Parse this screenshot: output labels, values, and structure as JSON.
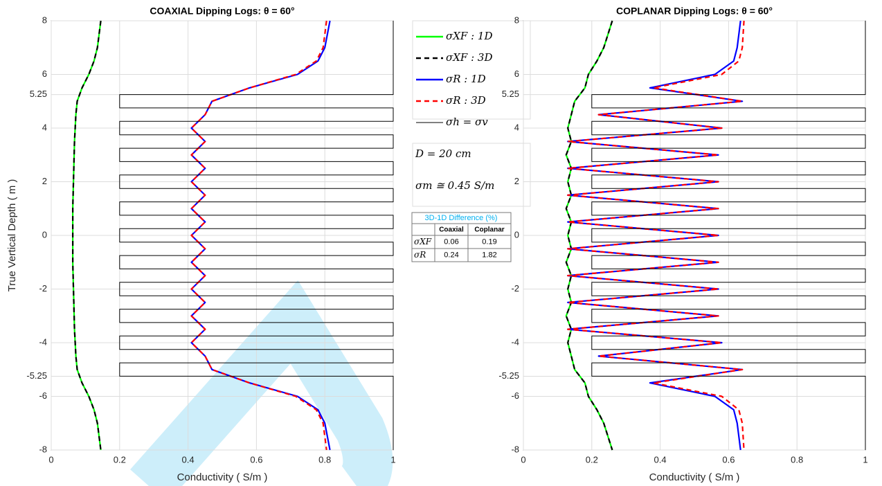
{
  "chart_data": [
    {
      "type": "line",
      "title": "COAXIAL Dipping Logs: θ = 60°",
      "xlabel": "Conductivity ( S/m )",
      "ylabel": "True Vertical Depth ( m )",
      "xlim": [
        0,
        1
      ],
      "ylim": [
        -8,
        8
      ],
      "xticks": [
        0,
        0.2,
        0.4,
        0.6,
        0.8,
        1
      ],
      "yticks": [
        -8,
        -6,
        -5.25,
        -4,
        -2,
        0,
        2,
        4,
        5.25,
        6,
        8
      ],
      "grid": true,
      "depth": [
        8,
        7,
        6.5,
        6,
        5.5,
        5,
        4.5,
        4,
        3.5,
        3,
        2.5,
        2,
        1.5,
        1,
        0.5,
        0,
        -0.5,
        -1,
        -1.5,
        -2,
        -2.5,
        -3,
        -3.5,
        -4,
        -4.5,
        -5,
        -5.5,
        -6,
        -6.5,
        -7,
        -8
      ],
      "series": [
        {
          "name": "σXF : 1D",
          "color": "#00ff00",
          "dash": false,
          "values": [
            0.145,
            0.135,
            0.125,
            0.11,
            0.09,
            0.076,
            0.072,
            0.07,
            0.068,
            0.067,
            0.066,
            0.065,
            0.064,
            0.063,
            0.063,
            0.063,
            0.063,
            0.063,
            0.064,
            0.065,
            0.066,
            0.067,
            0.068,
            0.07,
            0.072,
            0.076,
            0.09,
            0.11,
            0.125,
            0.135,
            0.145
          ]
        },
        {
          "name": "σXF : 3D",
          "color": "#000000",
          "dash": true,
          "values": [
            0.145,
            0.135,
            0.125,
            0.11,
            0.09,
            0.076,
            0.072,
            0.07,
            0.068,
            0.067,
            0.066,
            0.065,
            0.064,
            0.063,
            0.063,
            0.063,
            0.063,
            0.063,
            0.064,
            0.065,
            0.066,
            0.067,
            0.068,
            0.07,
            0.072,
            0.076,
            0.09,
            0.11,
            0.125,
            0.135,
            0.145
          ]
        },
        {
          "name": "σR : 1D",
          "color": "#0000ff",
          "dash": false,
          "values": [
            0.815,
            0.8,
            0.78,
            0.72,
            0.58,
            0.47,
            0.45,
            0.41,
            0.45,
            0.41,
            0.45,
            0.41,
            0.45,
            0.41,
            0.45,
            0.41,
            0.45,
            0.41,
            0.45,
            0.41,
            0.45,
            0.41,
            0.45,
            0.41,
            0.45,
            0.47,
            0.58,
            0.72,
            0.78,
            0.8,
            0.815
          ]
        },
        {
          "name": "σR : 3D",
          "color": "#ff0000",
          "dash": true,
          "values": [
            0.805,
            0.795,
            0.775,
            0.715,
            0.58,
            0.47,
            0.45,
            0.41,
            0.45,
            0.41,
            0.45,
            0.41,
            0.45,
            0.41,
            0.45,
            0.41,
            0.45,
            0.41,
            0.45,
            0.41,
            0.45,
            0.41,
            0.45,
            0.41,
            0.45,
            0.47,
            0.58,
            0.715,
            0.775,
            0.795,
            0.805
          ]
        },
        {
          "name": "σh = σv",
          "color": "#000000",
          "dash": false,
          "thin": true,
          "depth": [
            8,
            5.25,
            5.25,
            4.75,
            4.75,
            4.25,
            4.25,
            3.75,
            3.75,
            3.25,
            3.25,
            2.75,
            2.75,
            2.25,
            2.25,
            1.75,
            1.75,
            1.25,
            1.25,
            0.75,
            0.75,
            0.25,
            0.25,
            -0.25,
            -0.25,
            -0.75,
            -0.75,
            -1.25,
            -1.25,
            -1.75,
            -1.75,
            -2.25,
            -2.25,
            -2.75,
            -2.75,
            -3.25,
            -3.25,
            -3.75,
            -3.75,
            -4.25,
            -4.25,
            -4.75,
            -4.75,
            -5.25,
            -5.25,
            -8
          ],
          "values": [
            1,
            1,
            0.2,
            0.2,
            1,
            1,
            0.2,
            0.2,
            1,
            1,
            0.2,
            0.2,
            1,
            1,
            0.2,
            0.2,
            1,
            1,
            0.2,
            0.2,
            1,
            1,
            0.2,
            0.2,
            1,
            1,
            0.2,
            0.2,
            1,
            1,
            0.2,
            0.2,
            1,
            1,
            0.2,
            0.2,
            1,
            1,
            0.2,
            0.2,
            1,
            1,
            0.2,
            0.2,
            1,
            1
          ]
        }
      ],
      "annotations": [
        "D = 20 cm",
        "σm ≅ 0.45 S/m"
      ],
      "table": {
        "title": "3D-1D Difference (%)",
        "columns": [
          "Coaxial",
          "Coplanar"
        ],
        "rows": [
          {
            "label": "σXF",
            "values": [
              0.06,
              0.19
            ]
          },
          {
            "label": "σR",
            "values": [
              0.24,
              1.82
            ]
          }
        ]
      }
    },
    {
      "type": "line",
      "title": "COPLANAR Dipping Logs: θ = 60°",
      "xlabel": "Conductivity ( S/m )",
      "xlim": [
        0,
        1
      ],
      "ylim": [
        -8,
        8
      ],
      "xticks": [
        0,
        0.2,
        0.4,
        0.6,
        0.8,
        1
      ],
      "yticks": [
        -8,
        -6,
        -5.25,
        -4,
        -2,
        0,
        2,
        4,
        5.25,
        6,
        8
      ],
      "grid": true,
      "depth": [
        8,
        7,
        6.5,
        6,
        5.5,
        5,
        4.5,
        4,
        3.5,
        3,
        2.5,
        2,
        1.5,
        1,
        0.5,
        0,
        -0.5,
        -1,
        -1.5,
        -2,
        -2.5,
        -3,
        -3.5,
        -4,
        -4.5,
        -5,
        -5.5,
        -6,
        -6.5,
        -7,
        -8
      ],
      "series": [
        {
          "color": "#00ff00",
          "dash": false,
          "values": [
            0.26,
            0.235,
            0.215,
            0.19,
            0.18,
            0.15,
            0.14,
            0.13,
            0.14,
            0.125,
            0.14,
            0.13,
            0.14,
            0.125,
            0.14,
            0.13,
            0.14,
            0.125,
            0.14,
            0.13,
            0.14,
            0.125,
            0.14,
            0.13,
            0.14,
            0.15,
            0.18,
            0.19,
            0.215,
            0.235,
            0.26
          ]
        },
        {
          "color": "#000000",
          "dash": true,
          "values": [
            0.26,
            0.235,
            0.215,
            0.19,
            0.18,
            0.15,
            0.14,
            0.13,
            0.14,
            0.125,
            0.14,
            0.13,
            0.14,
            0.125,
            0.14,
            0.13,
            0.14,
            0.125,
            0.14,
            0.13,
            0.14,
            0.125,
            0.14,
            0.13,
            0.14,
            0.15,
            0.18,
            0.19,
            0.215,
            0.235,
            0.26
          ]
        },
        {
          "color": "#0000ff",
          "dash": false,
          "values": [
            0.635,
            0.625,
            0.615,
            0.56,
            0.37,
            0.64,
            0.22,
            0.58,
            0.13,
            0.57,
            0.13,
            0.57,
            0.13,
            0.57,
            0.13,
            0.57,
            0.13,
            0.57,
            0.13,
            0.57,
            0.13,
            0.57,
            0.13,
            0.58,
            0.22,
            0.64,
            0.37,
            0.56,
            0.615,
            0.625,
            0.635
          ]
        },
        {
          "color": "#ff0000",
          "dash": true,
          "values": [
            0.645,
            0.64,
            0.63,
            0.58,
            0.38,
            0.64,
            0.22,
            0.58,
            0.13,
            0.57,
            0.13,
            0.57,
            0.13,
            0.57,
            0.13,
            0.57,
            0.13,
            0.57,
            0.13,
            0.57,
            0.13,
            0.57,
            0.13,
            0.58,
            0.22,
            0.64,
            0.38,
            0.58,
            0.63,
            0.64,
            0.645
          ]
        },
        {
          "color": "#000000",
          "dash": false,
          "thin": true,
          "depth": [
            8,
            5.25,
            5.25,
            4.75,
            4.75,
            4.25,
            4.25,
            3.75,
            3.75,
            3.25,
            3.25,
            2.75,
            2.75,
            2.25,
            2.25,
            1.75,
            1.75,
            1.25,
            1.25,
            0.75,
            0.75,
            0.25,
            0.25,
            -0.25,
            -0.25,
            -0.75,
            -0.75,
            -1.25,
            -1.25,
            -1.75,
            -1.75,
            -2.25,
            -2.25,
            -2.75,
            -2.75,
            -3.25,
            -3.25,
            -3.75,
            -3.75,
            -4.25,
            -4.25,
            -4.75,
            -4.75,
            -5.25,
            -5.25,
            -8
          ],
          "values": [
            1,
            1,
            0.2,
            0.2,
            1,
            1,
            0.2,
            0.2,
            1,
            1,
            0.2,
            0.2,
            1,
            1,
            0.2,
            0.2,
            1,
            1,
            0.2,
            0.2,
            1,
            1,
            0.2,
            0.2,
            1,
            1,
            0.2,
            0.2,
            1,
            1,
            0.2,
            0.2,
            1,
            1,
            0.2,
            0.2,
            1,
            1,
            0.2,
            0.2,
            1,
            1,
            0.2,
            0.2,
            1,
            1
          ]
        }
      ]
    }
  ]
}
